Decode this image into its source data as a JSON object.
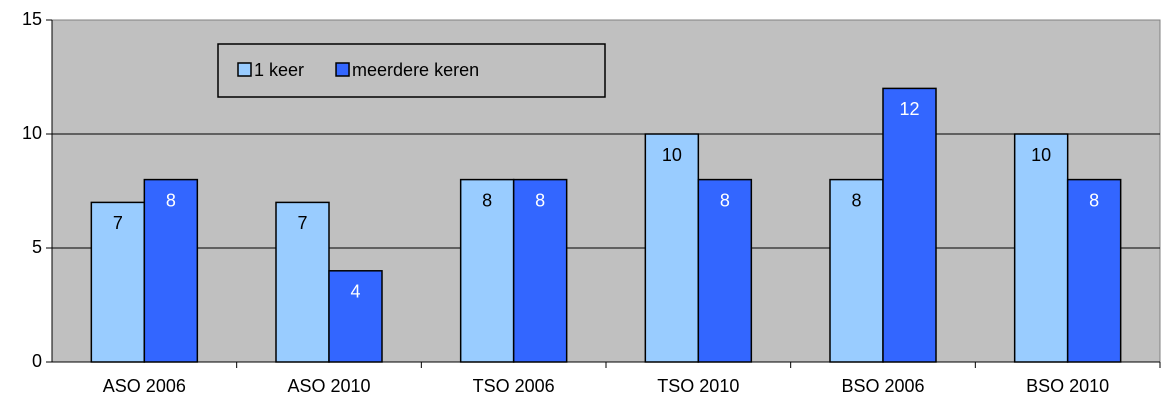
{
  "chart_data": {
    "type": "bar",
    "categories": [
      "ASO 2006",
      "ASO 2010",
      "TSO 2006",
      "TSO 2010",
      "BSO 2006",
      "BSO 2010"
    ],
    "series": [
      {
        "name": "1 keer",
        "color": "#99ccff",
        "label_color": "#000000",
        "values": [
          7,
          7,
          8,
          10,
          8,
          10
        ]
      },
      {
        "name": "meerdere keren",
        "color": "#3366ff",
        "label_color": "#ffffff",
        "values": [
          8,
          4,
          8,
          8,
          12,
          8
        ]
      }
    ],
    "ylim": [
      0,
      15
    ],
    "yticks": [
      0,
      5,
      10,
      15
    ],
    "grid": true,
    "plot_background": "#c0c0c0"
  }
}
